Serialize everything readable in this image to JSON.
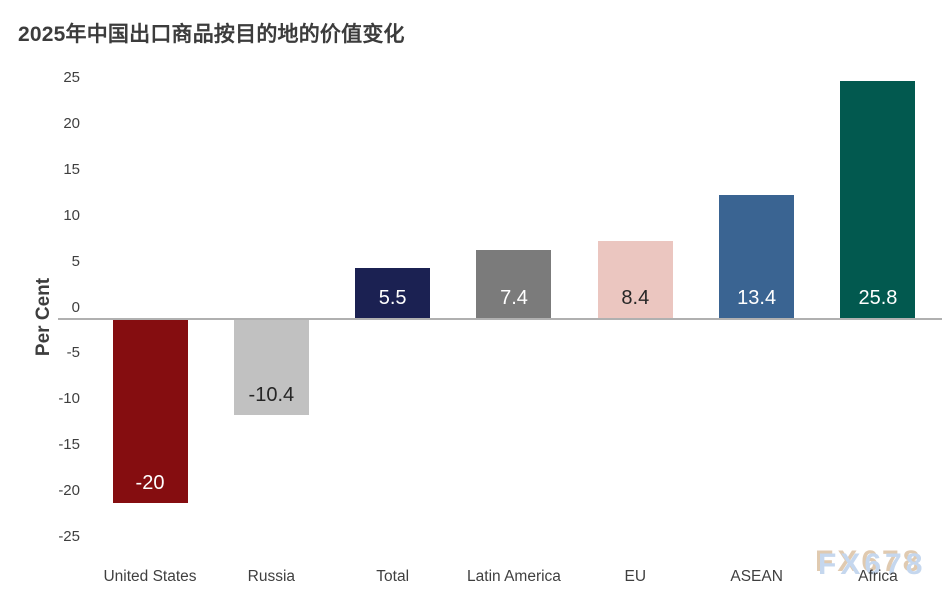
{
  "title": "2025年中国出口商品按目的地的价值变化",
  "watermark": "FX678",
  "chart_data": {
    "type": "bar",
    "title": "2025年中国出口商品按目的地的价值变化",
    "xlabel": "",
    "ylabel": "Per Cent",
    "ylim": [
      -25,
      25
    ],
    "ytick_step": 5,
    "grid": false,
    "legend": null,
    "categories": [
      "United States",
      "Russia",
      "Total",
      "Latin America",
      "EU",
      "ASEAN",
      "Africa"
    ],
    "values": [
      -20,
      -10.4,
      5.5,
      7.4,
      8.4,
      13.4,
      25.8
    ],
    "value_labels": [
      "-20",
      "-10.4",
      "5.5",
      "7.4",
      "8.4",
      "13.4",
      "25.8"
    ],
    "bar_colors": [
      "#850D10",
      "#C1C1C1",
      "#1B2152",
      "#7B7B7B",
      "#EBC6C0",
      "#3A6492",
      "#02594F"
    ],
    "value_label_colors": [
      "#FFFFFF",
      "#262626",
      "#FFFFFF",
      "#FFFFFF",
      "#262626",
      "#FFFFFF",
      "#FFFFFF"
    ]
  },
  "colors": {
    "background": "#FFFFFF",
    "title_text": "#3C3C3C",
    "axis_text": "#3F3F3F",
    "axis_line": "#B0B0B0",
    "watermark_front": "#C5D7EE",
    "watermark_back": "#E0CAB0"
  }
}
